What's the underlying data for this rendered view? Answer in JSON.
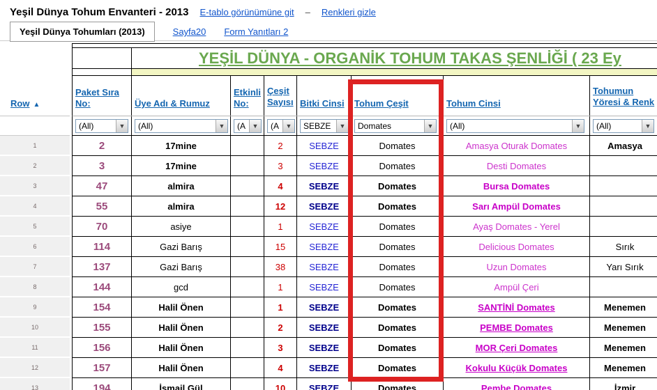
{
  "colors": {
    "linkBlue": "#1155cc",
    "headerBlue": "#1566b0",
    "green": "#6aa84f",
    "yellow": "#f3f6c3",
    "accentRed": "#dd2222",
    "purple": "#9b4a7b",
    "red": "#cc0000",
    "blue": "#2626d4",
    "navy": "#00008b",
    "magenta": "#cc33cc",
    "magentaBold": "#c800c8",
    "gutterBg": "#f0f0f0"
  },
  "topbar": {
    "title": "Yeşil Dünya Tohum Envanteri - 2013",
    "link1": "E-tablo görünümüne git",
    "dash": "–",
    "link2": "Renkleri gizle"
  },
  "tabs": {
    "active": "Yeşil Dünya Tohumları (2013)",
    "link1": "Sayfa20",
    "link2": "Form Yanıtları 2"
  },
  "table": {
    "banner": "YEŞİL DÜNYA - ORGANİK TOHUM TAKAS ŞENLİĞİ ( 23 Ey",
    "row_header": "Row",
    "sort_icon": "▲",
    "headers": [
      "Paket Sıra No:",
      "Üye Adı & Rumuz",
      "Etkinli No:",
      "Çeşit Sayısı",
      "Bitki Cinsi",
      "Tohum Çeşit",
      "Tohum Cinsi",
      "Tohumun Yöresi & Renk"
    ],
    "filters": [
      "(All)",
      "(All)",
      "(A",
      "(A",
      "SEBZE",
      "Domates",
      "(All)",
      "(All)"
    ],
    "rows": [
      {
        "n": "2",
        "name": "17mine",
        "etk": "",
        "qty": "2",
        "bitki": "SEBZE",
        "cesit": "Domates",
        "cinsi": "Amasya Oturak Domates",
        "yore": "Amasya",
        "b": false,
        "nb": true,
        "u": false,
        "yb": true
      },
      {
        "n": "3",
        "name": "17mine",
        "etk": "",
        "qty": "3",
        "bitki": "SEBZE",
        "cesit": "Domates",
        "cinsi": "Desti Domates",
        "yore": "",
        "b": false,
        "nb": true,
        "u": false,
        "yb": false
      },
      {
        "n": "47",
        "name": "almira",
        "etk": "",
        "qty": "4",
        "bitki": "SEBZE",
        "cesit": "Domates",
        "cinsi": "Bursa Domates",
        "yore": "",
        "b": true,
        "nb": false,
        "u": false,
        "yb": false
      },
      {
        "n": "55",
        "name": "almira",
        "etk": "",
        "qty": "12",
        "bitki": "SEBZE",
        "cesit": "Domates",
        "cinsi": "Sarı Ampül Domates",
        "yore": "",
        "b": true,
        "nb": false,
        "u": false,
        "yb": false
      },
      {
        "n": "70",
        "name": "asiye",
        "etk": "",
        "qty": "1",
        "bitki": "SEBZE",
        "cesit": "Domates",
        "cinsi": "Ayaş Domates - Yerel",
        "yore": "",
        "b": false,
        "nb": false,
        "u": false,
        "yb": false
      },
      {
        "n": "114",
        "name": "Gazi Barış",
        "etk": "",
        "qty": "15",
        "bitki": "SEBZE",
        "cesit": "Domates",
        "cinsi": "Delicious Domates",
        "yore": "Sırık",
        "b": false,
        "nb": false,
        "u": false,
        "yb": false
      },
      {
        "n": "137",
        "name": "Gazi Barış",
        "etk": "",
        "qty": "38",
        "bitki": "SEBZE",
        "cesit": "Domates",
        "cinsi": "Uzun Domates",
        "yore": "Yarı Sırık",
        "b": false,
        "nb": false,
        "u": false,
        "yb": false
      },
      {
        "n": "144",
        "name": "gcd",
        "etk": "",
        "qty": "1",
        "bitki": "SEBZE",
        "cesit": "Domates",
        "cinsi": "Ampül Çeri",
        "yore": "",
        "b": false,
        "nb": false,
        "u": false,
        "yb": false
      },
      {
        "n": "154",
        "name": "Halil Önen",
        "etk": "",
        "qty": "1",
        "bitki": "SEBZE",
        "cesit": "Domates",
        "cinsi": "SANTİNİ Domates",
        "yore": "Menemen",
        "b": true,
        "nb": false,
        "u": true,
        "yb": false
      },
      {
        "n": "155",
        "name": "Halil Önen",
        "etk": "",
        "qty": "2",
        "bitki": "SEBZE",
        "cesit": "Domates",
        "cinsi": "PEMBE Domates",
        "yore": "Menemen",
        "b": true,
        "nb": false,
        "u": true,
        "yb": false
      },
      {
        "n": "156",
        "name": "Halil Önen",
        "etk": "",
        "qty": "3",
        "bitki": "SEBZE",
        "cesit": "Domates",
        "cinsi": "MOR Çeri Domates",
        "yore": "Menemen",
        "b": true,
        "nb": false,
        "u": true,
        "yb": false
      },
      {
        "n": "157",
        "name": "Halil Önen",
        "etk": "",
        "qty": "4",
        "bitki": "SEBZE",
        "cesit": "Domates",
        "cinsi": "Kokulu Küçük Domates",
        "yore": "Menemen",
        "b": true,
        "nb": false,
        "u": true,
        "yb": false
      },
      {
        "n": "194",
        "name": "İsmail Gül",
        "etk": "",
        "qty": "10",
        "bitki": "SEBZE",
        "cesit": "Domates",
        "cinsi": "Pembe Domates",
        "yore": "İzmir",
        "b": true,
        "nb": false,
        "u": false,
        "yb": false
      }
    ]
  }
}
